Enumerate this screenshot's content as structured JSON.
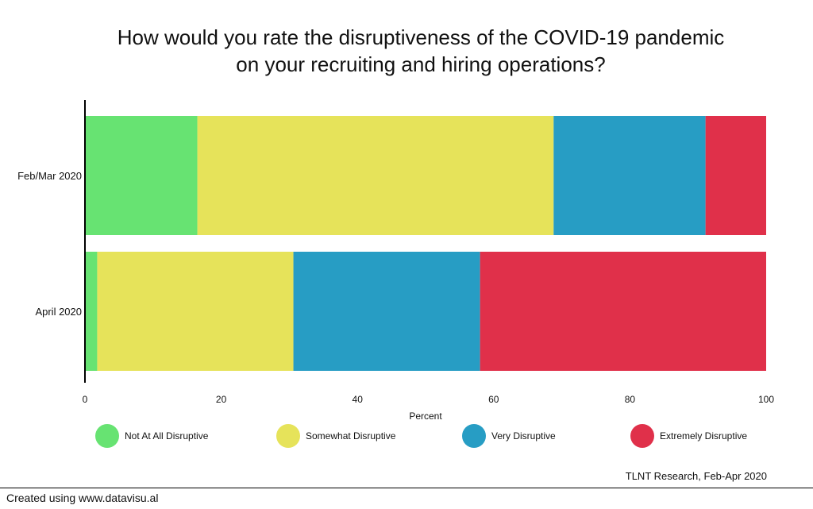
{
  "chart_data": {
    "type": "bar",
    "orientation": "horizontal",
    "stacked": true,
    "title": "How would you rate the disruptiveness of the COVID-19 pandemic on your recruiting and hiring operations?",
    "title_lines": [
      "How would you rate the disruptiveness of the COVID-19 pandemic",
      "on your recruiting and hiring operations?"
    ],
    "categories": [
      "Feb/Mar 2020",
      "April 2020"
    ],
    "xlabel": "Percent",
    "ylabel": "",
    "xlim": [
      0,
      100
    ],
    "xticks": [
      0,
      20,
      40,
      60,
      80,
      100
    ],
    "grid": false,
    "legend_position": "bottom",
    "series": [
      {
        "name": "Not At All Disruptive",
        "color": "#67e372",
        "values": [
          16.5,
          1.8
        ]
      },
      {
        "name": "Somewhat Disruptive",
        "color": "#e6e35a",
        "values": [
          52.3,
          28.8
        ]
      },
      {
        "name": "Very Disruptive",
        "color": "#279dc4",
        "values": [
          22.3,
          27.4
        ]
      },
      {
        "name": "Extremely Disruptive",
        "color": "#e0304a",
        "values": [
          8.9,
          42.0
        ]
      }
    ],
    "source": "TLNT Research, Feb-Apr 2020"
  },
  "footer": {
    "text": "Created using www.datavisu.al"
  }
}
